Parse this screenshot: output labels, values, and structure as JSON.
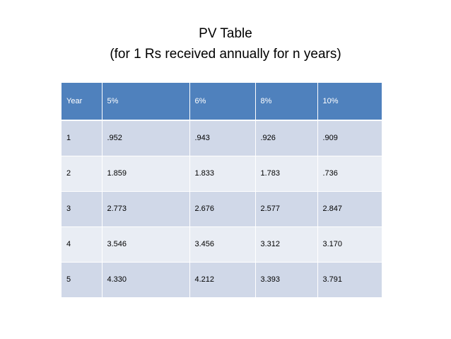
{
  "title": {
    "line1": "PV Table",
    "line2": "(for 1 Rs received annually for n years)"
  },
  "table": {
    "headers": [
      "Year",
      "5%",
      "6%",
      "8%",
      "10%"
    ],
    "rows": [
      [
        "1",
        ".952",
        ".943",
        ".926",
        ".909"
      ],
      [
        "2",
        "1.859",
        "1.833",
        "1.783",
        ".736"
      ],
      [
        "3",
        "2.773",
        "2.676",
        "2.577",
        "2.847"
      ],
      [
        "4",
        "3.546",
        "3.456",
        "3.312",
        "3.170"
      ],
      [
        "5",
        "4.330",
        "4.212",
        "3.393",
        "3.791"
      ]
    ]
  },
  "colors": {
    "header_bg": "#4f81bd",
    "row_band_dark": "#d0d8e8",
    "row_band_light": "#e9edf4",
    "header_text": "#ffffff"
  }
}
